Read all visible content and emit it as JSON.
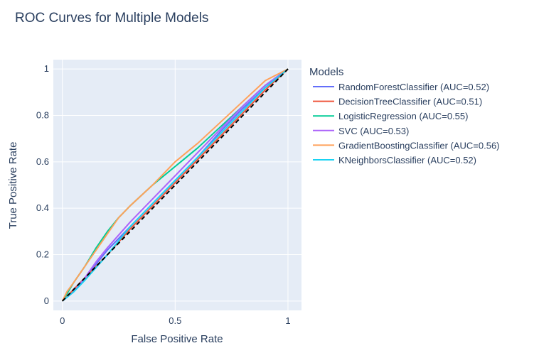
{
  "chart_data": {
    "type": "line",
    "title": "ROC Curves for Multiple Models",
    "xlabel": "False Positive Rate",
    "ylabel": "True Positive Rate",
    "xlim": [
      -0.04,
      1.06
    ],
    "ylim": [
      -0.04,
      1.04
    ],
    "x_ticks": [
      0,
      0.5,
      1
    ],
    "x_tick_labels": [
      "0",
      "0.5",
      "1"
    ],
    "y_ticks": [
      0,
      0.2,
      0.4,
      0.6,
      0.8,
      1
    ],
    "y_tick_labels": [
      "0",
      "0.2",
      "0.4",
      "0.6",
      "0.8",
      "1"
    ],
    "grid": true,
    "legend": {
      "title": "Models",
      "placement": "right"
    },
    "series": [
      {
        "name": "RandomForestClassifier (AUC=0.52)",
        "color": "#636efa",
        "x": [
          0,
          0.02,
          0.05,
          0.1,
          0.15,
          0.2,
          0.3,
          0.4,
          0.5,
          0.6,
          0.7,
          0.8,
          0.9,
          1
        ],
        "y": [
          0,
          0.02,
          0.05,
          0.1,
          0.16,
          0.22,
          0.32,
          0.42,
          0.52,
          0.62,
          0.73,
          0.83,
          0.92,
          1
        ]
      },
      {
        "name": "DecisionTreeClassifier (AUC=0.51)",
        "color": "#ef553b",
        "x": [
          0,
          0.05,
          0.1,
          0.2,
          0.3,
          0.4,
          0.5,
          0.6,
          0.7,
          0.8,
          0.9,
          1
        ],
        "y": [
          0,
          0.05,
          0.1,
          0.2,
          0.31,
          0.41,
          0.51,
          0.61,
          0.71,
          0.81,
          0.91,
          1
        ]
      },
      {
        "name": "LogisticRegression (AUC=0.55)",
        "color": "#00cc96",
        "x": [
          0,
          0.02,
          0.05,
          0.1,
          0.15,
          0.2,
          0.25,
          0.3,
          0.4,
          0.5,
          0.6,
          0.7,
          0.8,
          0.9,
          1
        ],
        "y": [
          0,
          0.03,
          0.08,
          0.15,
          0.23,
          0.3,
          0.36,
          0.41,
          0.5,
          0.58,
          0.66,
          0.75,
          0.84,
          0.93,
          1
        ]
      },
      {
        "name": "SVC (AUC=0.53)",
        "color": "#ab63fa",
        "x": [
          0,
          0.05,
          0.1,
          0.15,
          0.2,
          0.3,
          0.4,
          0.5,
          0.6,
          0.7,
          0.8,
          0.9,
          1
        ],
        "y": [
          0,
          0.04,
          0.1,
          0.17,
          0.23,
          0.34,
          0.44,
          0.54,
          0.64,
          0.74,
          0.84,
          0.93,
          1
        ]
      },
      {
        "name": "GradientBoostingClassifier (AUC=0.56)",
        "color": "#ffa15a",
        "x": [
          0,
          0.02,
          0.05,
          0.1,
          0.15,
          0.2,
          0.25,
          0.3,
          0.4,
          0.5,
          0.6,
          0.7,
          0.8,
          0.9,
          1
        ],
        "y": [
          0,
          0.04,
          0.08,
          0.15,
          0.22,
          0.29,
          0.36,
          0.41,
          0.5,
          0.6,
          0.68,
          0.77,
          0.86,
          0.95,
          1
        ]
      },
      {
        "name": "KNeighborsClassifier (AUC=0.52)",
        "color": "#19d3f3",
        "x": [
          0,
          0.05,
          0.1,
          0.2,
          0.3,
          0.4,
          0.5,
          0.6,
          0.7,
          0.8,
          0.9,
          1
        ],
        "y": [
          0,
          0.04,
          0.09,
          0.2,
          0.32,
          0.42,
          0.52,
          0.62,
          0.72,
          0.82,
          0.92,
          1
        ]
      },
      {
        "name": "",
        "color": "#000000",
        "dash": "dash",
        "x": [
          0,
          1
        ],
        "y": [
          0,
          1
        ]
      }
    ]
  }
}
